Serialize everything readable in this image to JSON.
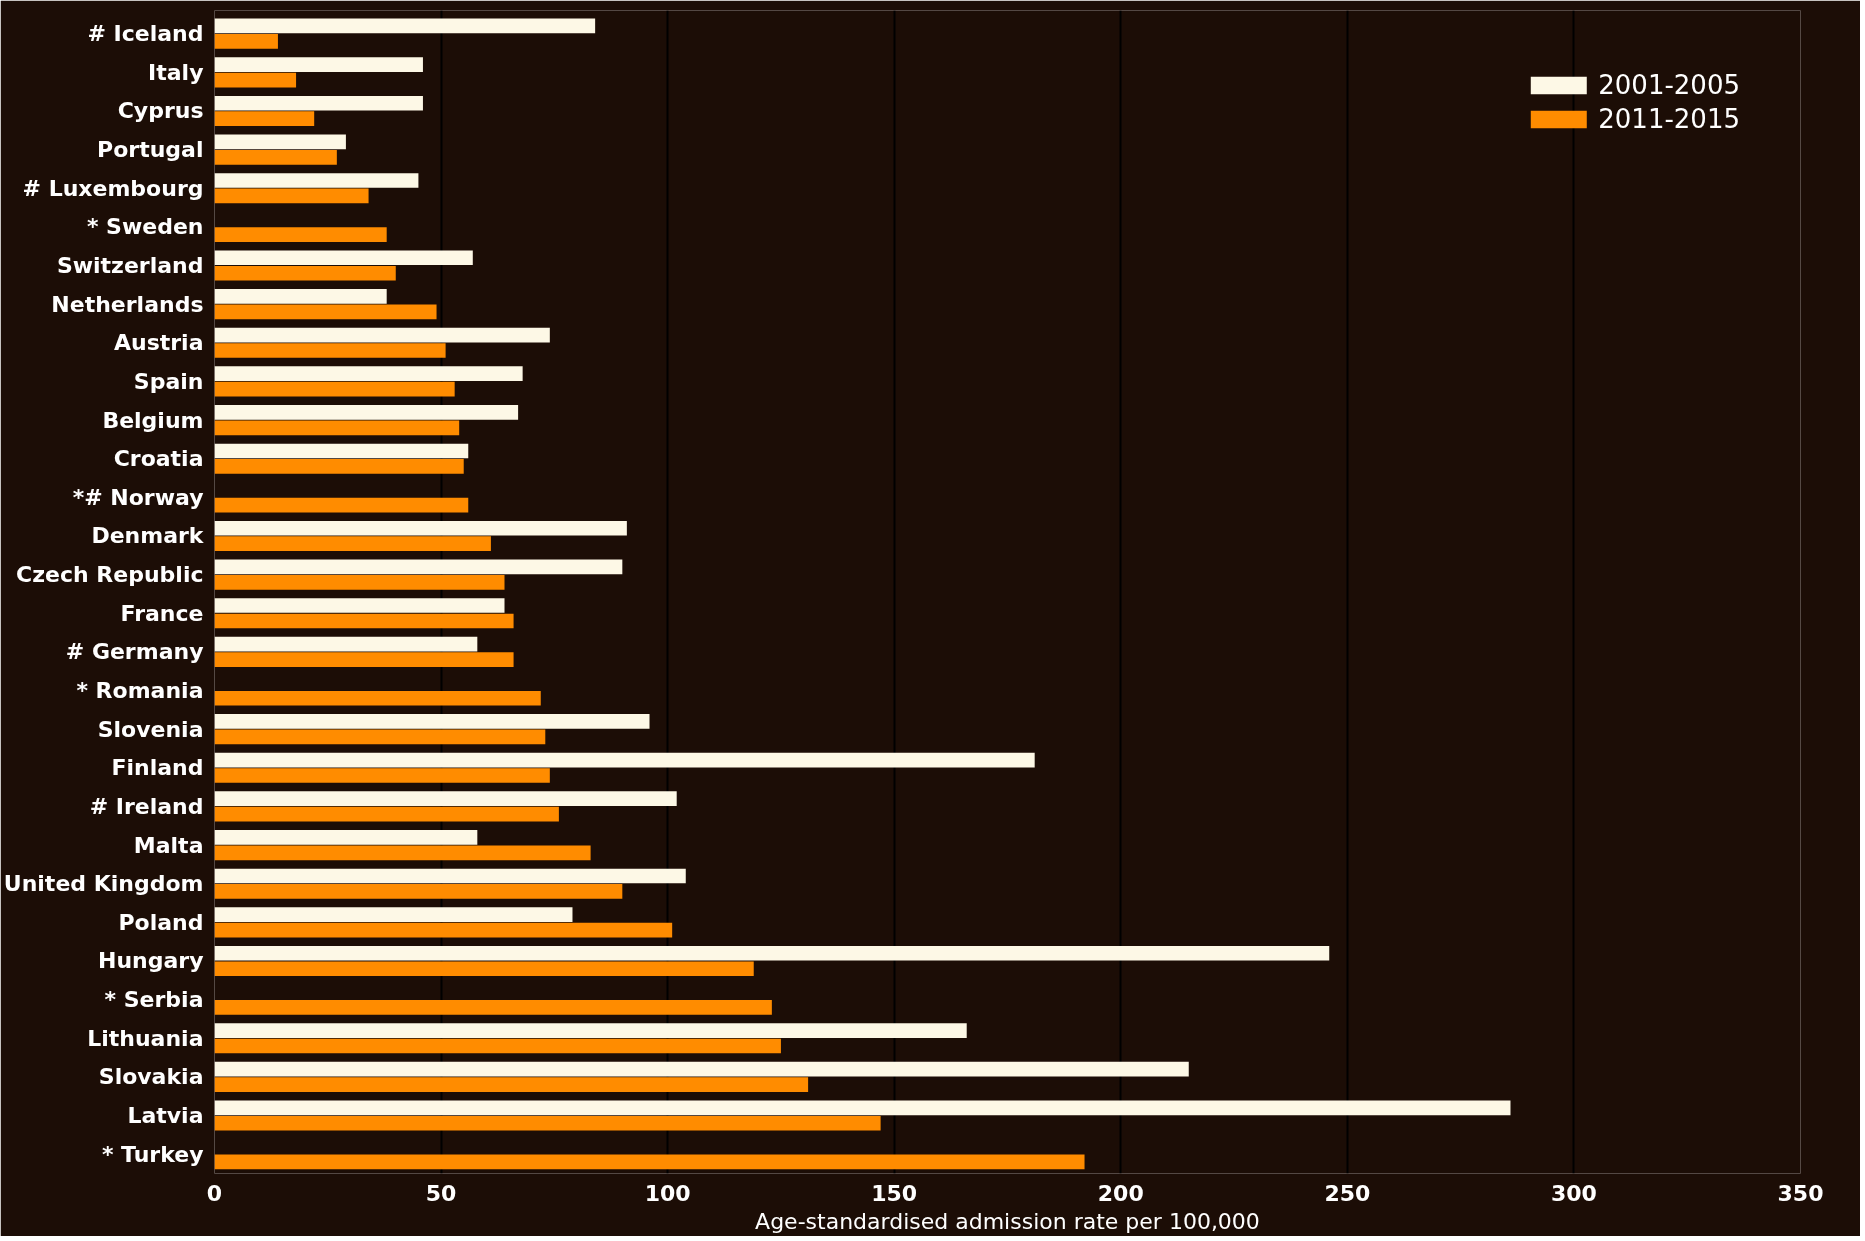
{
  "chart_data": {
    "type": "bar",
    "orientation": "horizontal",
    "categories": [
      "# Iceland",
      "Italy",
      "Cyprus",
      "Portugal",
      "# Luxembourg",
      "* Sweden",
      "Switzerland",
      "Netherlands",
      "Austria",
      "Spain",
      "Belgium",
      "Croatia",
      "*# Norway",
      "Denmark",
      "Czech Republic",
      "France",
      "# Germany",
      "* Romania",
      "Slovenia",
      "Finland",
      "# Ireland",
      "Malta",
      "United Kingdom",
      "Poland",
      "Hungary",
      "* Serbia",
      "Lithuania",
      "Slovakia",
      "Latvia",
      "* Turkey"
    ],
    "series": [
      {
        "name": "2001-2005",
        "color": "#fdf8e6",
        "values": [
          84,
          46,
          46,
          29,
          45,
          null,
          57,
          38,
          74,
          68,
          67,
          56,
          null,
          91,
          90,
          64,
          58,
          null,
          96,
          181,
          102,
          58,
          104,
          79,
          246,
          null,
          166,
          215,
          286,
          null
        ]
      },
      {
        "name": "2011-2015",
        "color": "#ff8c00",
        "values": [
          14,
          18,
          22,
          27,
          34,
          38,
          40,
          49,
          51,
          53,
          54,
          55,
          56,
          61,
          64,
          66,
          66,
          72,
          73,
          74,
          76,
          83,
          90,
          101,
          119,
          123,
          125,
          131,
          147,
          192
        ]
      }
    ],
    "xlabel": "Age-standardised admission rate per 100,000",
    "xlim": [
      0,
      350
    ],
    "xticks": [
      0,
      50,
      100,
      150,
      200,
      250,
      300,
      350
    ],
    "grid": "x",
    "legend": "top right"
  }
}
